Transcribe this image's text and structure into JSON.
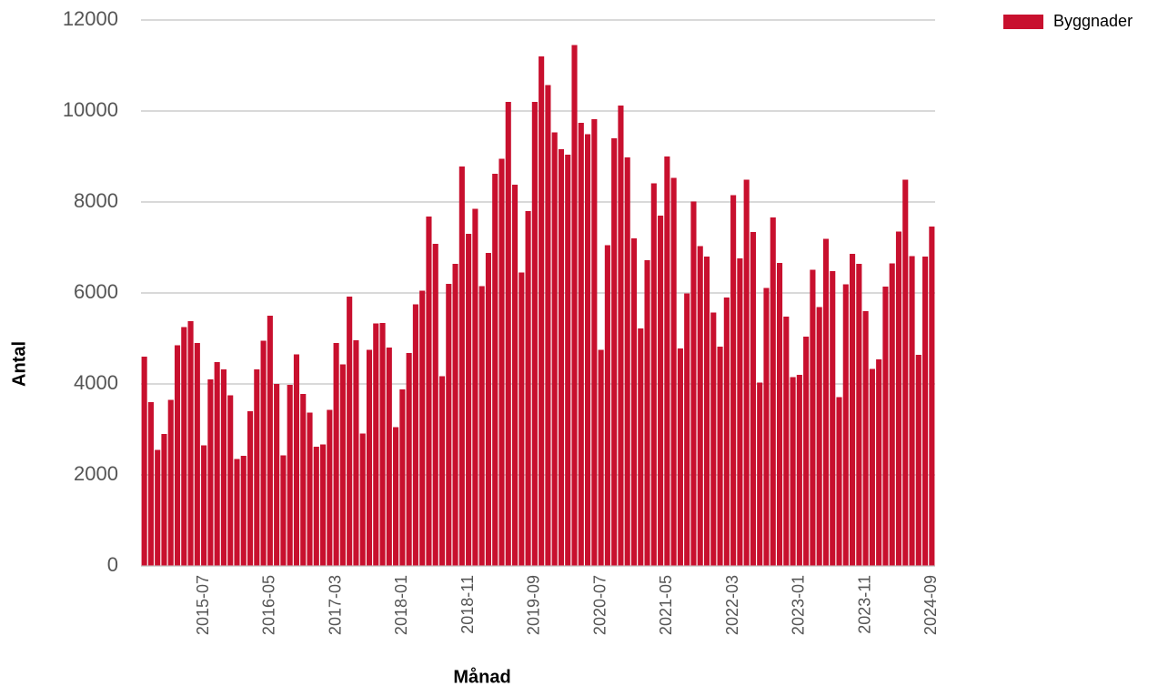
{
  "chart_data": {
    "type": "bar",
    "x_label": "Månad",
    "y_label": "Antal",
    "series": [
      {
        "name": "Byggnader",
        "color": "#c8102e",
        "values": [
          4600,
          3600,
          2550,
          2900,
          3650,
          4850,
          5250,
          5380,
          4900,
          2650,
          4100,
          4480,
          4320,
          3750,
          2350,
          2420,
          3400,
          4320,
          4950,
          5500,
          4000,
          2430,
          3980,
          4650,
          3780,
          3370,
          2620,
          2670,
          3430,
          4900,
          4430,
          5920,
          4960,
          2910,
          4750,
          5330,
          5340,
          4800,
          3050,
          3880,
          4680,
          5750,
          6050,
          7680,
          7080,
          4170,
          6200,
          6640,
          8780,
          7300,
          7850,
          6150,
          6880,
          8620,
          8950,
          10200,
          8380,
          6450,
          7800,
          10200,
          11200,
          10570,
          9530,
          9160,
          9040,
          11450,
          9740,
          9490,
          9820,
          4750,
          7050,
          9400,
          10120,
          8980,
          7200,
          5220,
          6720,
          8410,
          7700,
          9000,
          8530,
          4780,
          5990,
          8010,
          7030,
          6800,
          5570,
          4820,
          5900,
          8150,
          6760,
          8490,
          7340,
          4030,
          6110,
          7660,
          6660,
          5480,
          4150,
          4200,
          5040,
          6510,
          5690,
          7190,
          6480,
          3710,
          6190,
          6860,
          6640,
          5600,
          4330,
          4540,
          6140,
          6650,
          7350,
          8490,
          6810,
          4640,
          6800,
          7460
        ]
      }
    ],
    "categories": [
      null,
      null,
      null,
      null,
      null,
      null,
      null,
      null,
      null,
      "2015-07",
      null,
      null,
      null,
      null,
      null,
      null,
      null,
      null,
      null,
      "2016-05",
      null,
      null,
      null,
      null,
      null,
      null,
      null,
      null,
      null,
      "2017-03",
      null,
      null,
      null,
      null,
      null,
      null,
      null,
      null,
      null,
      "2018-01",
      null,
      null,
      null,
      null,
      null,
      null,
      null,
      null,
      null,
      "2018-11",
      null,
      null,
      null,
      null,
      null,
      null,
      null,
      null,
      null,
      "2019-09",
      null,
      null,
      null,
      null,
      null,
      null,
      null,
      null,
      null,
      "2020-07",
      null,
      null,
      null,
      null,
      null,
      null,
      null,
      null,
      null,
      "2021-05",
      null,
      null,
      null,
      null,
      null,
      null,
      null,
      null,
      null,
      "2022-03",
      null,
      null,
      null,
      null,
      null,
      null,
      null,
      null,
      null,
      "2023-01",
      null,
      null,
      null,
      null,
      null,
      null,
      null,
      null,
      null,
      "2023-11",
      null,
      null,
      null,
      null,
      null,
      null,
      null,
      null,
      null,
      "2024-09"
    ],
    "ylim": [
      0,
      12000
    ],
    "yticks": [
      0,
      2000,
      4000,
      6000,
      8000,
      10000,
      12000
    ],
    "grid": true,
    "legend": "top-right"
  }
}
